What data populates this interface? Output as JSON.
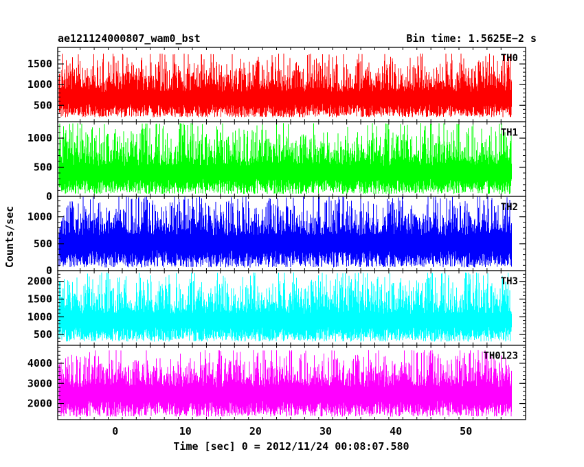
{
  "header": {
    "left_title": "ae121124000807_wam0_bst",
    "right_title": "Bin time: 1.5625E−2 s"
  },
  "chart_data": {
    "type": "line",
    "title": "ae121124000807_wam0_bst",
    "subtitle": "Bin time: 1.5625E−2 s",
    "xlabel": "Time [sec] 0 = 2012/11/24 00:08:07.580",
    "ylabel": "Counts/sec",
    "xlim": [
      -8.2,
      58.5
    ],
    "x_ticks": [
      0,
      10,
      20,
      30,
      40,
      50
    ],
    "x_range_data": [
      -8,
      56.5
    ],
    "bin_time": 0.015625,
    "panels": [
      {
        "name": "TH0",
        "color": "#ff0000",
        "ylim": [
          100,
          1900
        ],
        "yticks": [
          500,
          1000,
          1500
        ],
        "baseline": 820,
        "low": 210,
        "high": 1750
      },
      {
        "name": "TH1",
        "color": "#00ff00",
        "ylim": [
          0,
          1280
        ],
        "yticks": [
          0,
          500,
          1000
        ],
        "baseline": 520,
        "low": 40,
        "high": 1260
      },
      {
        "name": "TH2",
        "color": "#0000ff",
        "ylim": [
          0,
          1380
        ],
        "yticks": [
          0,
          500,
          1000
        ],
        "baseline": 650,
        "low": 60,
        "high": 1380
      },
      {
        "name": "TH3",
        "color": "#00ffff",
        "ylim": [
          200,
          2300
        ],
        "yticks": [
          500,
          1000,
          1500,
          2000
        ],
        "baseline": 1080,
        "low": 300,
        "high": 2250
      },
      {
        "name": "TH0123",
        "color": "#ff00ff",
        "ylim": [
          1200,
          4900
        ],
        "yticks": [
          2000,
          3000,
          4000
        ],
        "baseline": 2800,
        "low": 1350,
        "high": 4650
      }
    ]
  }
}
